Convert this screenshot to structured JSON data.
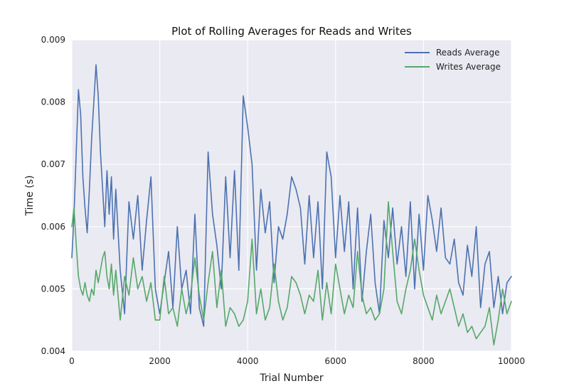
{
  "chart_data": {
    "type": "line",
    "title": "Plot of Rolling Averages for Reads and Writes",
    "xlabel": "Trial Number",
    "ylabel": "Time (s)",
    "xlim": [
      0,
      10000
    ],
    "ylim": [
      0.004,
      0.009
    ],
    "x_ticks": [
      0,
      2000,
      4000,
      6000,
      8000,
      10000
    ],
    "x_tick_labels": [
      "0",
      "2000",
      "4000",
      "6000",
      "8000",
      "10000"
    ],
    "y_ticks": [
      0.004,
      0.005,
      0.006,
      0.007,
      0.008,
      0.009
    ],
    "y_tick_labels": [
      "0.004",
      "0.005",
      "0.006",
      "0.007",
      "0.008",
      "0.009"
    ],
    "grid": true,
    "legend_position": "top-right",
    "x": [
      0,
      50,
      100,
      150,
      200,
      250,
      300,
      350,
      400,
      450,
      500,
      550,
      600,
      650,
      700,
      750,
      800,
      850,
      900,
      950,
      1000,
      1100,
      1200,
      1300,
      1400,
      1500,
      1600,
      1700,
      1800,
      1900,
      2000,
      2100,
      2200,
      2300,
      2400,
      2500,
      2600,
      2700,
      2800,
      2900,
      3000,
      3100,
      3200,
      3300,
      3400,
      3500,
      3600,
      3700,
      3800,
      3900,
      4000,
      4100,
      4200,
      4300,
      4400,
      4500,
      4600,
      4700,
      4800,
      4900,
      5000,
      5100,
      5200,
      5300,
      5400,
      5500,
      5600,
      5700,
      5800,
      5900,
      6000,
      6100,
      6200,
      6300,
      6400,
      6500,
      6600,
      6700,
      6800,
      6900,
      7000,
      7100,
      7200,
      7300,
      7400,
      7500,
      7600,
      7700,
      7800,
      7900,
      8000,
      8100,
      8200,
      8300,
      8400,
      8500,
      8600,
      8700,
      8800,
      8900,
      9000,
      9100,
      9200,
      9300,
      9400,
      9500,
      9600,
      9700,
      9800,
      9900,
      10000
    ],
    "series": [
      {
        "name": "Reads Average",
        "color": "#4c72b0",
        "values": [
          0.0055,
          0.0062,
          0.0072,
          0.0082,
          0.0078,
          0.0068,
          0.0063,
          0.0059,
          0.0066,
          0.0074,
          0.008,
          0.0086,
          0.0081,
          0.0072,
          0.0066,
          0.006,
          0.0069,
          0.0062,
          0.0068,
          0.0058,
          0.0066,
          0.0053,
          0.0046,
          0.0064,
          0.0058,
          0.0065,
          0.0053,
          0.0061,
          0.0068,
          0.005,
          0.0046,
          0.0051,
          0.0056,
          0.0047,
          0.006,
          0.005,
          0.0053,
          0.0046,
          0.0062,
          0.0047,
          0.0044,
          0.0072,
          0.0062,
          0.0057,
          0.005,
          0.0068,
          0.0055,
          0.0069,
          0.0053,
          0.0081,
          0.0076,
          0.007,
          0.0053,
          0.0066,
          0.0059,
          0.0064,
          0.0051,
          0.006,
          0.0058,
          0.0062,
          0.0068,
          0.0066,
          0.0063,
          0.0054,
          0.0065,
          0.0055,
          0.0064,
          0.005,
          0.0072,
          0.0068,
          0.0055,
          0.0065,
          0.0056,
          0.0064,
          0.005,
          0.0063,
          0.0048,
          0.0056,
          0.0062,
          0.0051,
          0.0046,
          0.0061,
          0.0055,
          0.0063,
          0.0054,
          0.006,
          0.0052,
          0.0064,
          0.005,
          0.0062,
          0.0053,
          0.0065,
          0.0061,
          0.0056,
          0.0063,
          0.0055,
          0.0054,
          0.0058,
          0.0051,
          0.0049,
          0.0057,
          0.0052,
          0.006,
          0.0047,
          0.0054,
          0.0056,
          0.0047,
          0.0052,
          0.0046,
          0.0051,
          0.0052
        ]
      },
      {
        "name": "Writes Average",
        "color": "#55a868",
        "values": [
          0.006,
          0.0063,
          0.0057,
          0.0052,
          0.005,
          0.0049,
          0.0051,
          0.0049,
          0.0048,
          0.005,
          0.0049,
          0.0053,
          0.0051,
          0.0053,
          0.0055,
          0.0056,
          0.0052,
          0.005,
          0.0054,
          0.0049,
          0.0053,
          0.0045,
          0.0052,
          0.0049,
          0.0055,
          0.005,
          0.0052,
          0.0048,
          0.0051,
          0.0045,
          0.0045,
          0.0052,
          0.0046,
          0.0047,
          0.0044,
          0.005,
          0.0046,
          0.0049,
          0.0055,
          0.0049,
          0.0045,
          0.0051,
          0.0056,
          0.0047,
          0.0053,
          0.0044,
          0.0047,
          0.0046,
          0.0044,
          0.0045,
          0.0048,
          0.0058,
          0.0046,
          0.005,
          0.0045,
          0.0047,
          0.0054,
          0.0048,
          0.0045,
          0.0047,
          0.0052,
          0.0051,
          0.0049,
          0.0046,
          0.0049,
          0.0048,
          0.0053,
          0.0045,
          0.0051,
          0.0046,
          0.0054,
          0.005,
          0.0046,
          0.0049,
          0.0047,
          0.0056,
          0.0049,
          0.0046,
          0.0047,
          0.0045,
          0.0046,
          0.005,
          0.0064,
          0.0056,
          0.0048,
          0.0046,
          0.005,
          0.0053,
          0.0058,
          0.0053,
          0.0049,
          0.0047,
          0.0045,
          0.0049,
          0.0046,
          0.0048,
          0.005,
          0.0047,
          0.0044,
          0.0046,
          0.0043,
          0.0044,
          0.0042,
          0.0043,
          0.0044,
          0.0047,
          0.0041,
          0.0045,
          0.005,
          0.0046,
          0.0048
        ]
      }
    ]
  }
}
